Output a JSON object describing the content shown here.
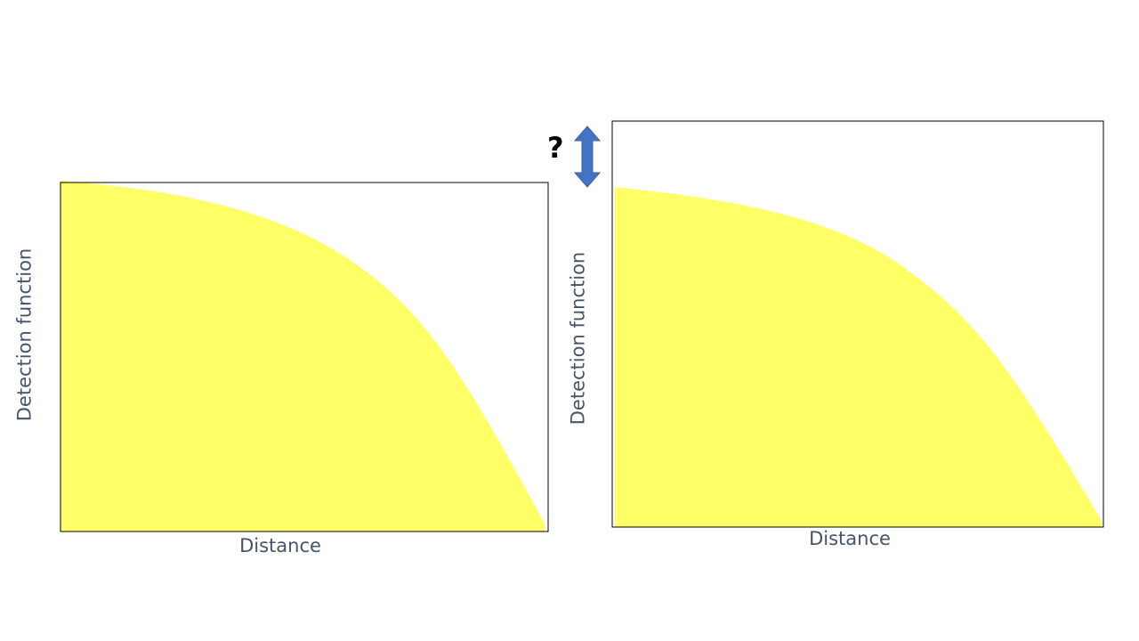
{
  "colors": {
    "fill": "#ffff66",
    "axis_text": "#44546a",
    "frame": "#000000",
    "arrow": "#4472c4"
  },
  "panels": [
    {
      "id": "left",
      "xlabel": "Distance",
      "ylabel": "Detection function",
      "fill_top_level": 1.0
    },
    {
      "id": "right",
      "xlabel": "Distance",
      "ylabel": "Detection function",
      "fill_top_level": 0.83
    }
  ],
  "annotation": {
    "symbol": "?",
    "icon": "double-vertical-arrow-icon"
  }
}
